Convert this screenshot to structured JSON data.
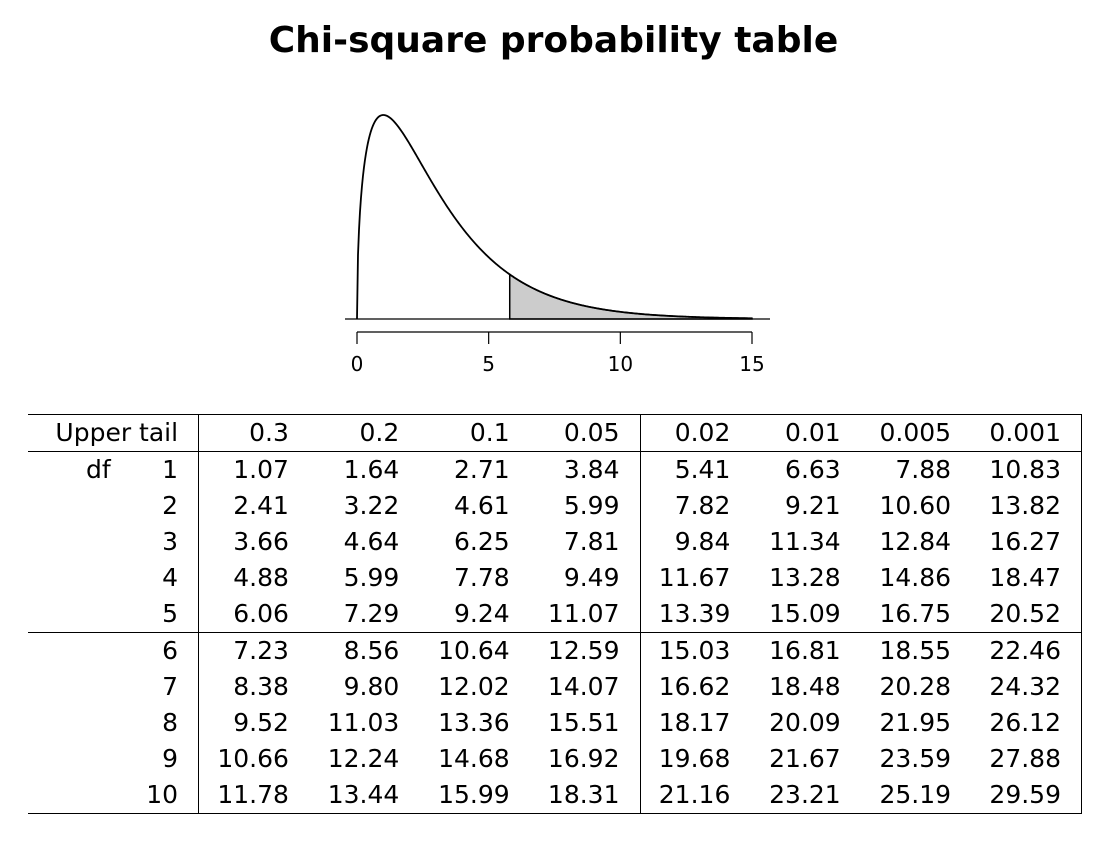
{
  "title": "Chi-square probability table",
  "plot": {
    "x_ticks": [
      "0",
      "5",
      "10",
      "15"
    ],
    "x_range": [
      0,
      15
    ],
    "df": 3,
    "shaded_from": 5.8,
    "shade_color": "#cccccc"
  },
  "table": {
    "header_label": "Upper tail",
    "df_label": "df",
    "columns": [
      "0.3",
      "0.2",
      "0.1",
      "0.05",
      "0.02",
      "0.01",
      "0.005",
      "0.001"
    ],
    "rows": [
      {
        "df": "1",
        "values": [
          "1.07",
          "1.64",
          "2.71",
          "3.84",
          "5.41",
          "6.63",
          "7.88",
          "10.83"
        ]
      },
      {
        "df": "2",
        "values": [
          "2.41",
          "3.22",
          "4.61",
          "5.99",
          "7.82",
          "9.21",
          "10.60",
          "13.82"
        ]
      },
      {
        "df": "3",
        "values": [
          "3.66",
          "4.64",
          "6.25",
          "7.81",
          "9.84",
          "11.34",
          "12.84",
          "16.27"
        ]
      },
      {
        "df": "4",
        "values": [
          "4.88",
          "5.99",
          "7.78",
          "9.49",
          "11.67",
          "13.28",
          "14.86",
          "18.47"
        ]
      },
      {
        "df": "5",
        "values": [
          "6.06",
          "7.29",
          "9.24",
          "11.07",
          "13.39",
          "15.09",
          "16.75",
          "20.52"
        ]
      },
      {
        "df": "6",
        "values": [
          "7.23",
          "8.56",
          "10.64",
          "12.59",
          "15.03",
          "16.81",
          "18.55",
          "22.46"
        ]
      },
      {
        "df": "7",
        "values": [
          "8.38",
          "9.80",
          "12.02",
          "14.07",
          "16.62",
          "18.48",
          "20.28",
          "24.32"
        ]
      },
      {
        "df": "8",
        "values": [
          "9.52",
          "11.03",
          "13.36",
          "15.51",
          "18.17",
          "20.09",
          "21.95",
          "26.12"
        ]
      },
      {
        "df": "9",
        "values": [
          "10.66",
          "12.24",
          "14.68",
          "16.92",
          "19.68",
          "21.67",
          "23.59",
          "27.88"
        ]
      },
      {
        "df": "10",
        "values": [
          "11.78",
          "13.44",
          "15.99",
          "18.31",
          "21.16",
          "23.21",
          "25.19",
          "29.59"
        ]
      }
    ]
  }
}
